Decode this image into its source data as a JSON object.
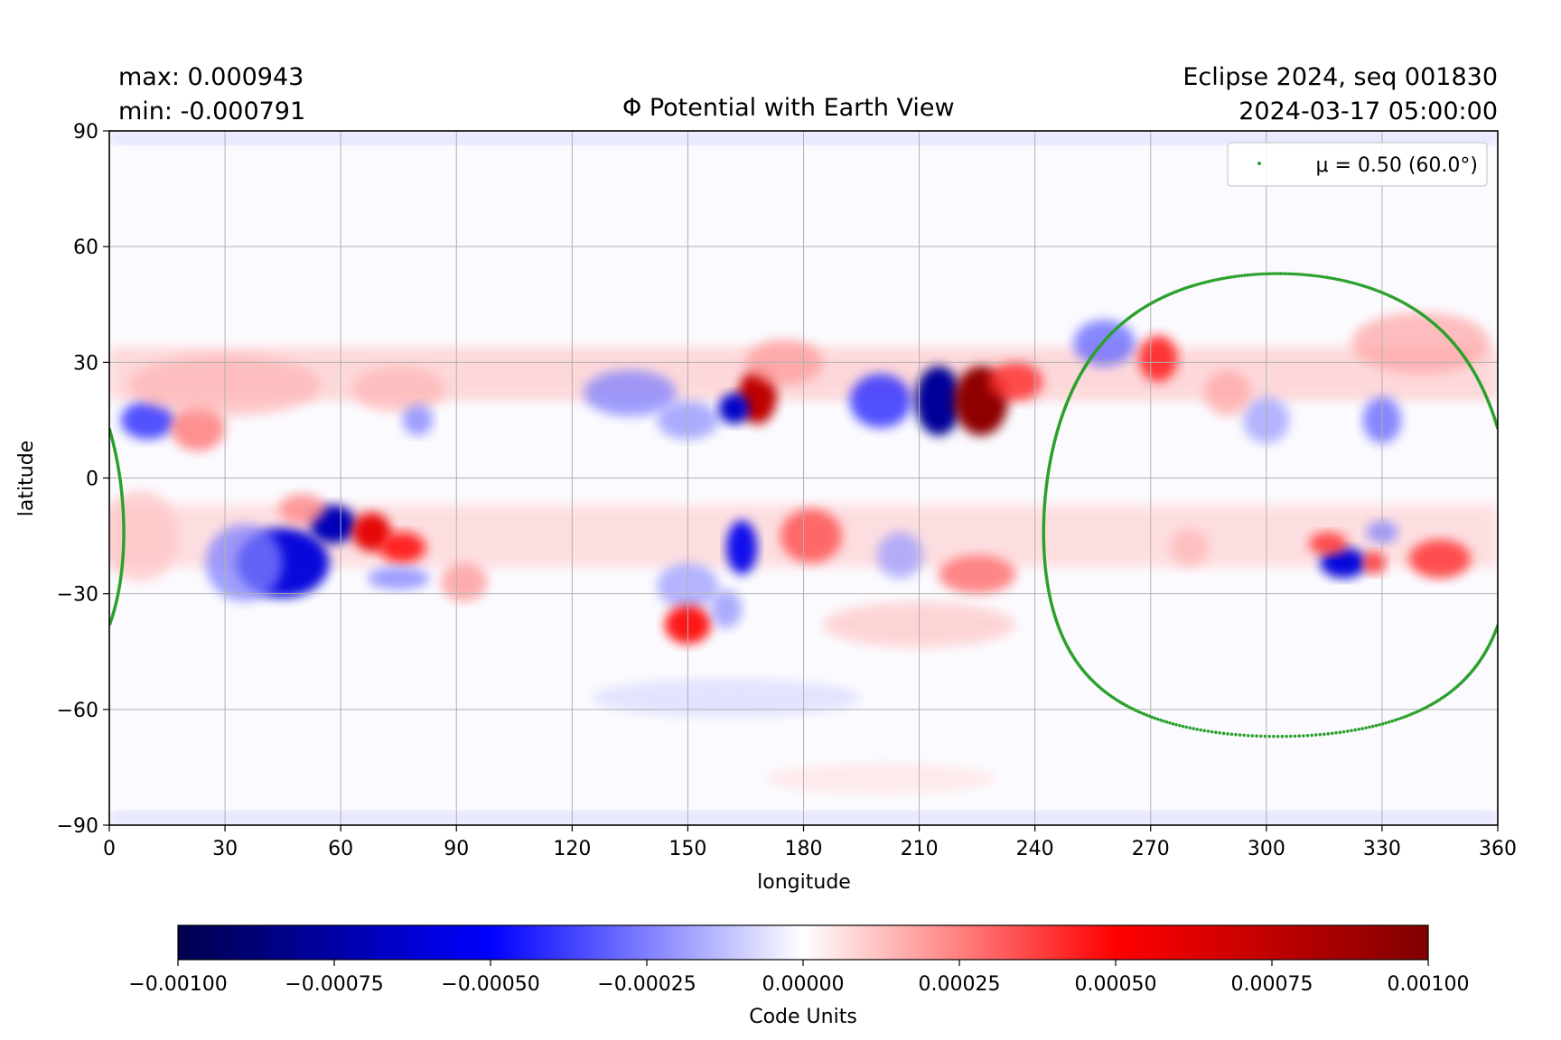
{
  "header": {
    "max_label": "max:  0.000943",
    "min_label": "min:  -0.000791",
    "title": "Φ Potential with Earth View",
    "run_label": "Eclipse 2024, seq 001830",
    "timestamp": "2024-03-17 05:00:00"
  },
  "chart_data": {
    "type": "heatmap",
    "title": "Φ Potential with Earth View",
    "xlabel": "longitude",
    "ylabel": "latitude",
    "xlim": [
      0,
      360
    ],
    "ylim": [
      -90,
      90
    ],
    "xticks": [
      "0",
      "30",
      "60",
      "90",
      "120",
      "150",
      "180",
      "210",
      "240",
      "270",
      "300",
      "330",
      "360"
    ],
    "yticks": [
      "90",
      "60",
      "30",
      "0",
      "−30",
      "−60",
      "−90"
    ],
    "xtick_values": [
      0,
      30,
      60,
      90,
      120,
      150,
      180,
      210,
      240,
      270,
      300,
      330,
      360
    ],
    "ytick_values": [
      90,
      60,
      30,
      0,
      -30,
      -60,
      -90
    ],
    "grid": true,
    "colormap": "seismic",
    "colorbar": {
      "label": "Code Units",
      "range": [
        -0.001,
        0.001
      ],
      "ticks": [
        "−0.00100",
        "−0.00075",
        "−0.00050",
        "−0.00025",
        "0.00000",
        "0.00025",
        "0.00050",
        "0.00075",
        "0.00100"
      ],
      "tick_values": [
        -0.001,
        -0.00075,
        -0.0005,
        -0.00025,
        0,
        0.00025,
        0.0005,
        0.00075,
        0.001
      ]
    },
    "max": 0.000943,
    "min": -0.000791,
    "features": [
      {
        "lon": 10,
        "lat": 15,
        "dlon": 7,
        "dlat": 5,
        "value": -0.0004
      },
      {
        "lon": 23,
        "lat": 13,
        "dlon": 7,
        "dlat": 6,
        "value": 0.00028
      },
      {
        "lon": 30,
        "lat": 24,
        "dlon": 25,
        "dlat": 8,
        "value": 0.00015
      },
      {
        "lon": 75,
        "lat": 23,
        "dlon": 12,
        "dlat": 6,
        "value": 0.00015
      },
      {
        "lon": 80,
        "lat": 15,
        "dlon": 4,
        "dlat": 4,
        "value": -0.00025
      },
      {
        "lon": 135,
        "lat": 22,
        "dlon": 12,
        "dlat": 6,
        "value": -0.00025
      },
      {
        "lon": 150,
        "lat": 15,
        "dlon": 8,
        "dlat": 5,
        "value": -0.00022
      },
      {
        "lon": 168,
        "lat": 21,
        "dlon": 5,
        "dlat": 7,
        "value": 0.00075
      },
      {
        "lon": 162,
        "lat": 18,
        "dlon": 4,
        "dlat": 4,
        "value": -0.00065
      },
      {
        "lon": 175,
        "lat": 30,
        "dlon": 10,
        "dlat": 6,
        "value": 0.0002
      },
      {
        "lon": 200,
        "lat": 20,
        "dlon": 8,
        "dlat": 7,
        "value": -0.0004
      },
      {
        "lon": 215,
        "lat": 20,
        "dlon": 6,
        "dlat": 9,
        "value": -0.00079
      },
      {
        "lon": 226,
        "lat": 20,
        "dlon": 7,
        "dlat": 9,
        "value": 0.000943
      },
      {
        "lon": 235,
        "lat": 25,
        "dlon": 7,
        "dlat": 5,
        "value": 0.0004
      },
      {
        "lon": 258,
        "lat": 35,
        "dlon": 8,
        "dlat": 6,
        "value": -0.0003
      },
      {
        "lon": 272,
        "lat": 31,
        "dlon": 5,
        "dlat": 6,
        "value": 0.00045
      },
      {
        "lon": 300,
        "lat": 15,
        "dlon": 6,
        "dlat": 6,
        "value": -0.0002
      },
      {
        "lon": 330,
        "lat": 15,
        "dlon": 5,
        "dlat": 6,
        "value": -0.0003
      },
      {
        "lon": 340,
        "lat": 35,
        "dlon": 18,
        "dlat": 8,
        "value": 0.00018
      },
      {
        "lon": 290,
        "lat": 22,
        "dlon": 6,
        "dlat": 6,
        "value": 0.00018
      },
      {
        "lon": 45,
        "lat": -22,
        "dlon": 12,
        "dlat": 9,
        "value": -0.0006
      },
      {
        "lon": 58,
        "lat": -12,
        "dlon": 6,
        "dlat": 5,
        "value": -0.0007
      },
      {
        "lon": 35,
        "lat": -22,
        "dlon": 10,
        "dlat": 10,
        "value": -0.00025
      },
      {
        "lon": 68,
        "lat": -14,
        "dlon": 5,
        "dlat": 5,
        "value": 0.0006
      },
      {
        "lon": 76,
        "lat": -18,
        "dlon": 6,
        "dlat": 4,
        "value": 0.00048
      },
      {
        "lon": 75,
        "lat": -26,
        "dlon": 8,
        "dlat": 3,
        "value": -0.00025
      },
      {
        "lon": 50,
        "lat": -8,
        "dlon": 6,
        "dlat": 4,
        "value": 0.00025
      },
      {
        "lon": 92,
        "lat": -27,
        "dlon": 6,
        "dlat": 5,
        "value": 0.00022
      },
      {
        "lon": 8,
        "lat": -15,
        "dlon": 10,
        "dlat": 12,
        "value": 0.00012
      },
      {
        "lon": 164,
        "lat": -18,
        "dlon": 4,
        "dlat": 7,
        "value": -0.00055
      },
      {
        "lon": 150,
        "lat": -28,
        "dlon": 8,
        "dlat": 6,
        "value": -0.0002
      },
      {
        "lon": 182,
        "lat": -15,
        "dlon": 8,
        "dlat": 7,
        "value": 0.00035
      },
      {
        "lon": 150,
        "lat": -38,
        "dlon": 6,
        "dlat": 5,
        "value": 0.0005
      },
      {
        "lon": 160,
        "lat": -34,
        "dlon": 4,
        "dlat": 5,
        "value": -0.00022
      },
      {
        "lon": 205,
        "lat": -20,
        "dlon": 6,
        "dlat": 6,
        "value": -0.0002
      },
      {
        "lon": 225,
        "lat": -25,
        "dlon": 10,
        "dlat": 5,
        "value": 0.0003
      },
      {
        "lon": 210,
        "lat": -38,
        "dlon": 25,
        "dlat": 6,
        "value": 0.00012
      },
      {
        "lon": 320,
        "lat": -22,
        "dlon": 6,
        "dlat": 4,
        "value": -0.0006
      },
      {
        "lon": 316,
        "lat": -17,
        "dlon": 5,
        "dlat": 3,
        "value": 0.0004
      },
      {
        "lon": 328,
        "lat": -22,
        "dlon": 3,
        "dlat": 3,
        "value": 0.0004
      },
      {
        "lon": 345,
        "lat": -21,
        "dlon": 8,
        "dlat": 5,
        "value": 0.0004
      },
      {
        "lon": 330,
        "lat": -14,
        "dlon": 4,
        "dlat": 3,
        "value": -0.00025
      },
      {
        "lon": 280,
        "lat": -18,
        "dlon": 5,
        "dlat": 5,
        "value": 0.00015
      },
      {
        "lon": 160,
        "lat": -57,
        "dlon": 35,
        "dlat": 5,
        "value": -8e-05
      },
      {
        "lon": 200,
        "lat": -78,
        "dlon": 30,
        "dlat": 4,
        "value": 6e-05
      }
    ],
    "overlay": {
      "legend_label": "μ = 0.50 (60.0°)",
      "legend_position": "upper-right",
      "mu": 0.5,
      "angle_deg": 60.0,
      "center_lon": 303,
      "center_lat": -7,
      "color": "#2ca02c"
    }
  }
}
